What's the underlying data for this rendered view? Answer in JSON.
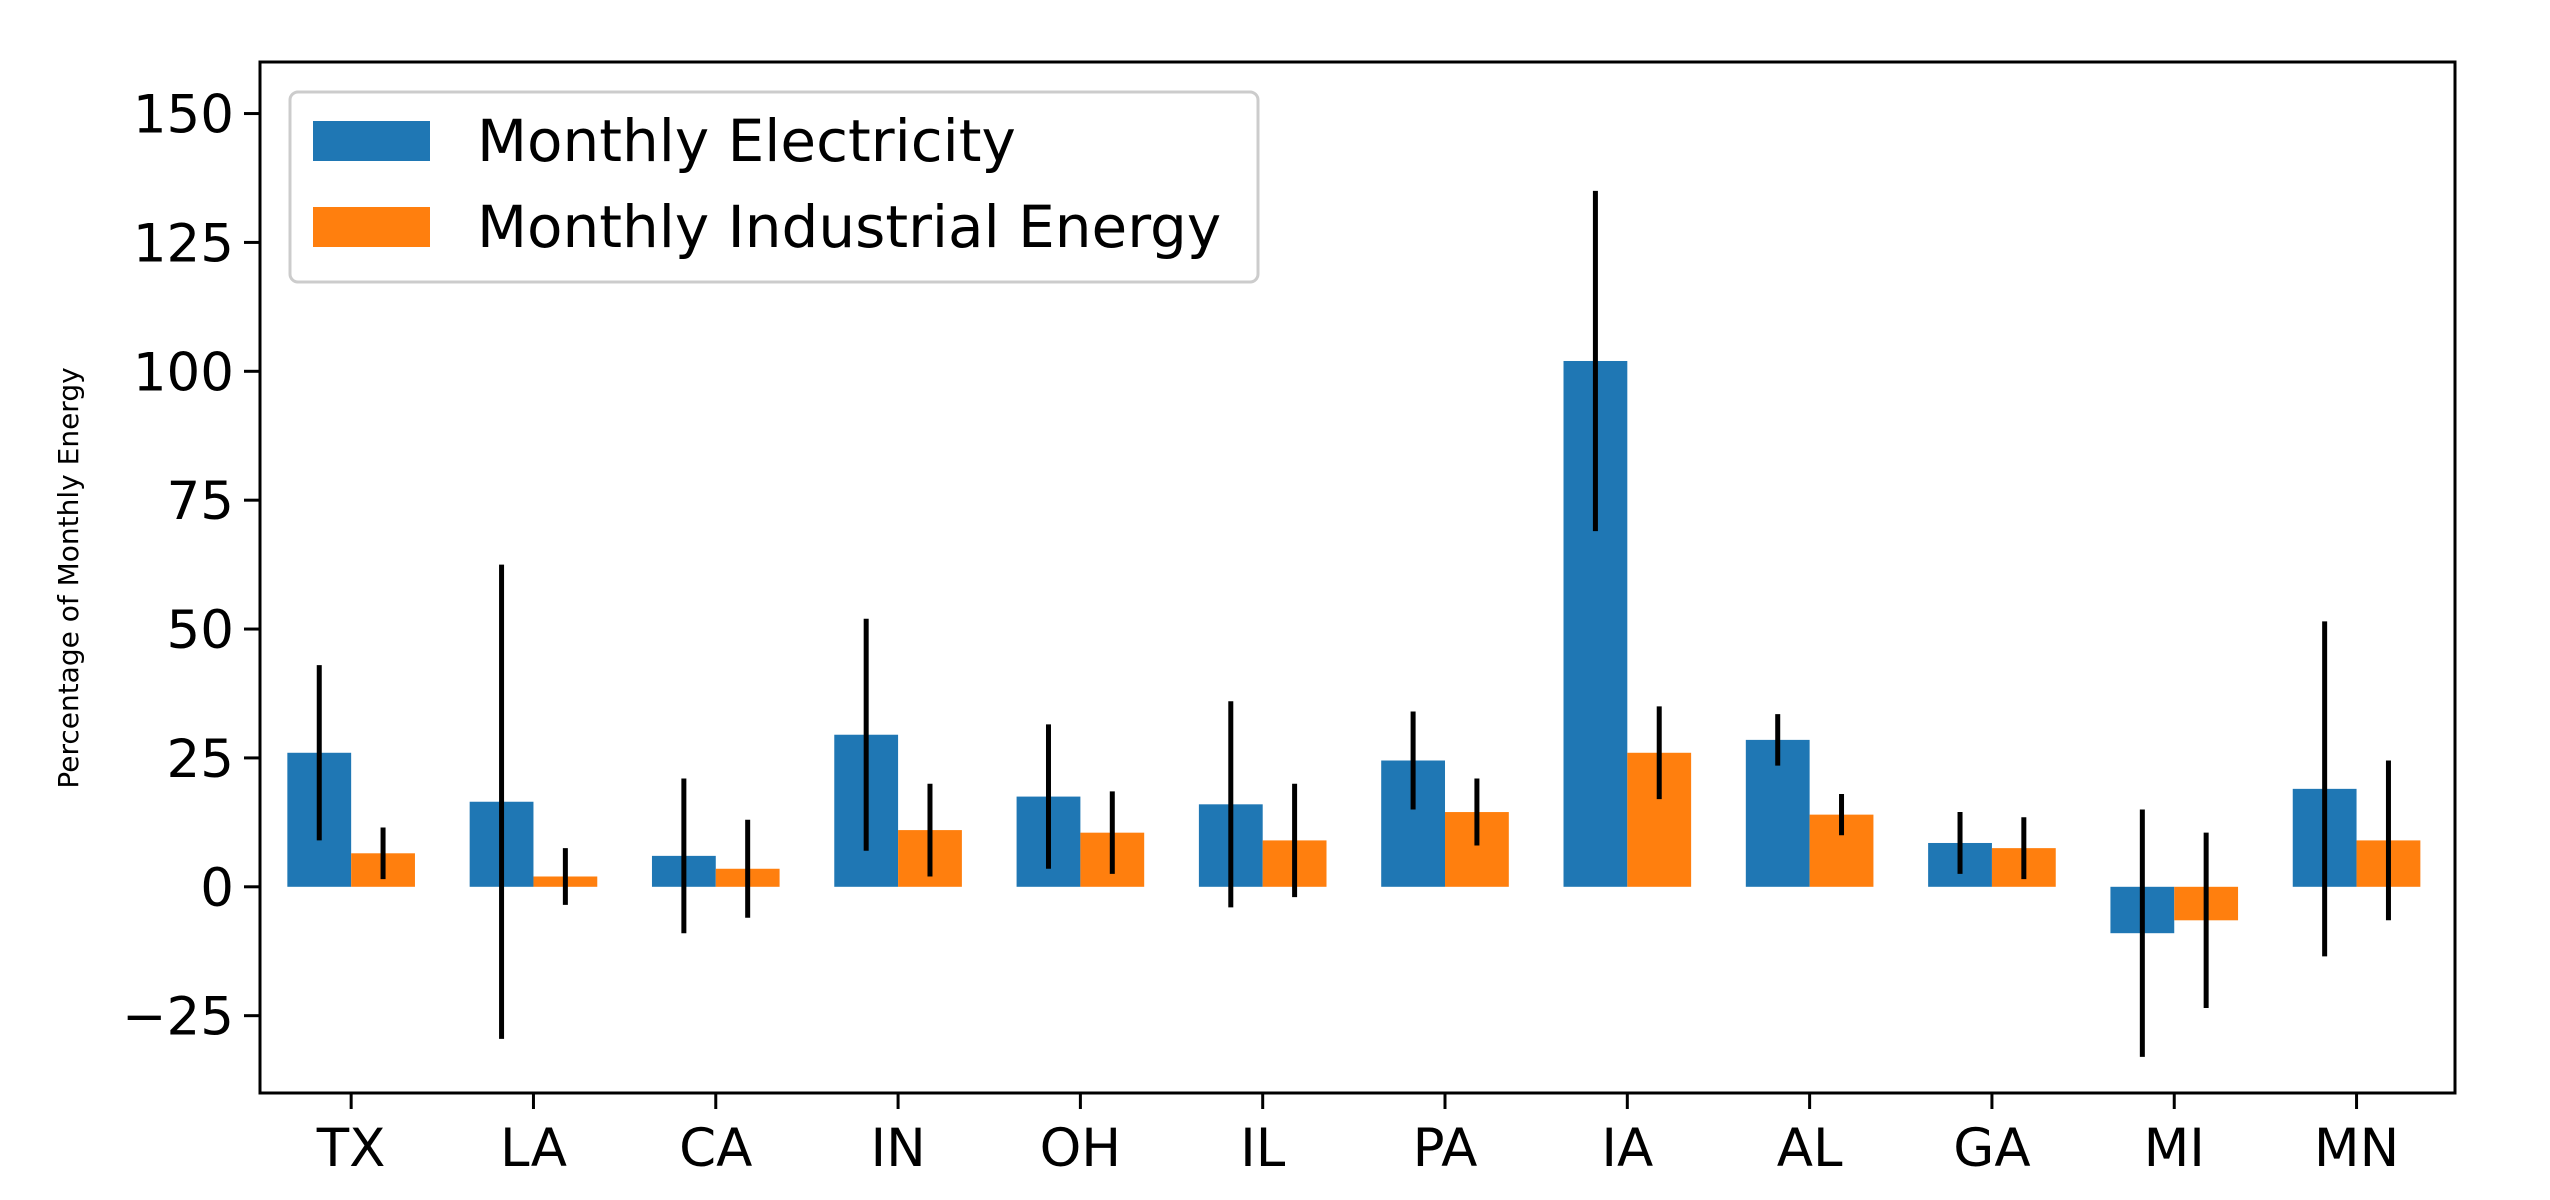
{
  "chart_data": {
    "type": "bar",
    "title": "",
    "xlabel": "",
    "ylabel": "Percentage of Monthly Energy",
    "categories": [
      "TX",
      "LA",
      "CA",
      "IN",
      "OH",
      "IL",
      "PA",
      "IA",
      "AL",
      "GA",
      "MI",
      "MN"
    ],
    "series": [
      {
        "name": "Monthly Electricity",
        "color": "#1f77b4",
        "values": [
          26,
          16.5,
          6,
          29.5,
          17.5,
          16,
          24.5,
          102,
          28.5,
          8.5,
          -9,
          19
        ],
        "errors": [
          17,
          46,
          15,
          22.5,
          14,
          20,
          9.5,
          33,
          5,
          6,
          24,
          32.5
        ]
      },
      {
        "name": "Monthly Industrial Energy",
        "color": "#ff7f0e",
        "values": [
          6.5,
          2,
          3.5,
          11,
          10.5,
          9,
          14.5,
          26,
          14,
          7.5,
          -6.5,
          9
        ],
        "errors": [
          5,
          5.5,
          9.5,
          9,
          8,
          11,
          6.5,
          9,
          4,
          6,
          17,
          15.5
        ]
      }
    ],
    "ylim": [
      -40,
      160
    ],
    "yticks": [
      -25,
      0,
      25,
      50,
      75,
      100,
      125,
      150
    ],
    "ytick_labels": [
      "−25",
      "0",
      "25",
      "50",
      "75",
      "100",
      "125",
      "150"
    ],
    "grid": false,
    "legend_position": "top-left"
  }
}
